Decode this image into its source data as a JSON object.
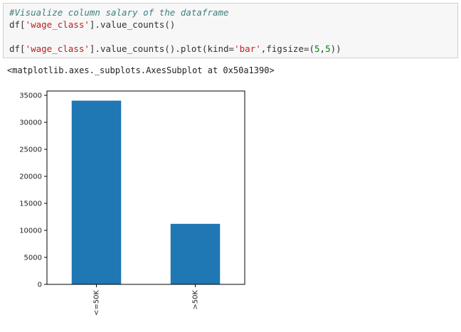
{
  "notebook": {
    "input_lines": [
      {
        "kind": "comment",
        "text": "#Visualize column salary of the dataframe"
      },
      {
        "kind": "code",
        "parts": [
          {
            "t": "df[",
            "c": "code"
          },
          {
            "t": "'wage_class'",
            "c": "str"
          },
          {
            "t": "].value_counts()",
            "c": "code"
          }
        ]
      },
      {
        "kind": "blank"
      },
      {
        "kind": "code",
        "parts": [
          {
            "t": "df[",
            "c": "code"
          },
          {
            "t": "'wage_class'",
            "c": "str"
          },
          {
            "t": "].value_counts().plot(kind=",
            "c": "code"
          },
          {
            "t": "'bar'",
            "c": "str"
          },
          {
            "t": ",figsize=(",
            "c": "code"
          },
          {
            "t": "5",
            "c": "num"
          },
          {
            "t": ",",
            "c": "code"
          },
          {
            "t": "5",
            "c": "num"
          },
          {
            "t": "))",
            "c": "code"
          }
        ]
      }
    ],
    "output_text": "<matplotlib.axes._subplots.AxesSubplot at 0x50a1390>"
  },
  "chart_data": {
    "type": "bar",
    "categories": [
      "<=50K",
      ">50K"
    ],
    "values": [
      34014,
      11208
    ],
    "ylim": [
      0,
      35800
    ],
    "yticks": [
      0,
      5000,
      10000,
      15000,
      20000,
      25000,
      30000,
      35000
    ],
    "bar_color": "#1f77b4",
    "grid": false
  }
}
